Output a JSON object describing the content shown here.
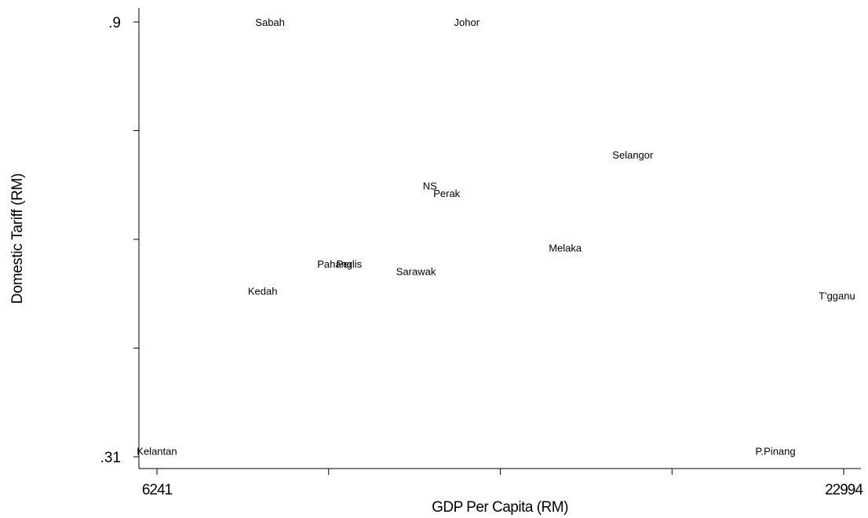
{
  "chart_data": {
    "type": "scatter",
    "title": "",
    "xlabel": "GDP Per Capita (RM)",
    "ylabel": "Domestic Tariff (RM)",
    "xlim": [
      6241,
      22994
    ],
    "ylim": [
      0.31,
      0.9
    ],
    "x_tick_labels": [
      {
        "value": 6241,
        "label": "6241"
      },
      {
        "value": 22994,
        "label": "22994"
      }
    ],
    "x_unlabeled_ticks": [
      10429,
      14618,
      18806
    ],
    "y_tick_labels": [
      {
        "value": 0.9,
        "label": ".9"
      },
      {
        "value": 0.31,
        "label": ".31"
      }
    ],
    "y_unlabeled_ticks": [
      0.4575,
      0.605,
      0.7525
    ],
    "points": [
      {
        "label": "Sabah",
        "x": 9000,
        "y": 0.9
      },
      {
        "label": "Johor",
        "x": 13800,
        "y": 0.9
      },
      {
        "label": "Selangor",
        "x": 17850,
        "y": 0.72
      },
      {
        "label": "NS",
        "x": 12900,
        "y": 0.678
      },
      {
        "label": "Perak",
        "x": 13310,
        "y": 0.668
      },
      {
        "label": "Melaka",
        "x": 16200,
        "y": 0.594
      },
      {
        "label": "Pahang",
        "x": 10580,
        "y": 0.572
      },
      {
        "label": "Perlis",
        "x": 10930,
        "y": 0.572
      },
      {
        "label": "Sarawak",
        "x": 12560,
        "y": 0.562
      },
      {
        "label": "Kedah",
        "x": 8820,
        "y": 0.535
      },
      {
        "label": "T'gganu",
        "x": 22830,
        "y": 0.529
      },
      {
        "label": "Kelantan",
        "x": 6240,
        "y": 0.318
      },
      {
        "label": "P.Pinang",
        "x": 21330,
        "y": 0.318
      }
    ]
  }
}
